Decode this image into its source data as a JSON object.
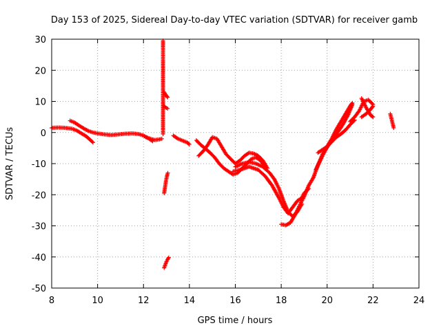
{
  "chart_data": {
    "type": "scatter",
    "title": "Day 153 of 2025, Sidereal Day-to-day VTEC variation (SDTVAR) for receiver gamb",
    "xlabel": "GPS time / hours",
    "ylabel": "SDTVAR / TECUs",
    "xlim": [
      8,
      24
    ],
    "ylim": [
      -50,
      30
    ],
    "xticks": [
      8,
      10,
      12,
      14,
      16,
      18,
      20,
      22,
      24
    ],
    "xtick_labels": [
      "8",
      "10",
      "12",
      "14",
      "16",
      "18",
      "20",
      "22",
      "24"
    ],
    "yticks": [
      -50,
      -40,
      -30,
      -20,
      -10,
      0,
      10,
      20,
      30
    ],
    "ytick_labels": [
      "-50",
      "-40",
      "-30",
      "-20",
      "-10",
      "0",
      "10",
      "20",
      "30"
    ],
    "grid": true,
    "marker": "+",
    "color": "#ff0000",
    "series": [
      {
        "name": "SDTVAR",
        "segments": [
          [
            [
              8.0,
              1.5
            ],
            [
              8.3,
              1.6
            ],
            [
              8.6,
              1.5
            ],
            [
              8.9,
              1.2
            ],
            [
              9.1,
              0.6
            ],
            [
              9.3,
              -0.3
            ],
            [
              9.5,
              -1.2
            ],
            [
              9.7,
              -2.5
            ],
            [
              9.8,
              -3.2
            ]
          ],
          [
            [
              8.8,
              3.8
            ],
            [
              9.0,
              3.2
            ],
            [
              9.2,
              2.2
            ],
            [
              9.4,
              1.3
            ],
            [
              9.6,
              0.5
            ],
            [
              9.8,
              0.0
            ],
            [
              10.0,
              -0.3
            ],
            [
              10.3,
              -0.6
            ],
            [
              10.6,
              -0.8
            ],
            [
              10.9,
              -0.6
            ],
            [
              11.2,
              -0.4
            ],
            [
              11.5,
              -0.3
            ],
            [
              11.8,
              -0.5
            ],
            [
              12.0,
              -1.0
            ],
            [
              12.2,
              -1.8
            ],
            [
              12.4,
              -2.8
            ]
          ],
          [
            [
              12.1,
              -1.5
            ],
            [
              12.3,
              -2.0
            ],
            [
              12.5,
              -2.4
            ],
            [
              12.7,
              -2.2
            ],
            [
              12.8,
              -2.0
            ]
          ],
          [
            [
              12.85,
              29.5
            ],
            [
              12.85,
              20.5
            ],
            [
              12.85,
              15.0
            ],
            [
              12.85,
              1.0
            ],
            [
              12.85,
              -0.5
            ]
          ],
          [
            [
              12.9,
              13.0
            ],
            [
              12.95,
              12.3
            ],
            [
              13.0,
              11.8
            ],
            [
              13.05,
              11.3
            ]
          ],
          [
            [
              12.9,
              8.5
            ],
            [
              12.95,
              8.1
            ],
            [
              13.0,
              7.9
            ],
            [
              13.05,
              7.7
            ]
          ],
          [
            [
              12.9,
              -19.5
            ],
            [
              12.95,
              -17.0
            ],
            [
              12.98,
              -15.5
            ],
            [
              13.02,
              -14.0
            ],
            [
              13.06,
              -13.0
            ]
          ],
          [
            [
              12.9,
              -43.5
            ],
            [
              12.95,
              -42.5
            ],
            [
              13.0,
              -41.5
            ],
            [
              13.05,
              -40.8
            ],
            [
              13.1,
              -40.2
            ]
          ],
          [
            [
              13.3,
              -1.0
            ],
            [
              13.5,
              -2.0
            ],
            [
              13.7,
              -2.6
            ],
            [
              13.9,
              -3.2
            ],
            [
              14.0,
              -3.8
            ]
          ],
          [
            [
              14.3,
              -2.5
            ],
            [
              14.5,
              -4.0
            ],
            [
              14.7,
              -5.2
            ],
            [
              14.9,
              -6.5
            ],
            [
              15.1,
              -8.0
            ],
            [
              15.3,
              -10.0
            ],
            [
              15.5,
              -11.5
            ],
            [
              15.7,
              -12.5
            ],
            [
              15.9,
              -13.5
            ],
            [
              16.1,
              -13.0
            ],
            [
              16.3,
              -11.5
            ],
            [
              16.5,
              -10.0
            ],
            [
              16.7,
              -8.5
            ],
            [
              16.9,
              -8.0
            ],
            [
              17.1,
              -9.0
            ],
            [
              17.3,
              -11.0
            ]
          ],
          [
            [
              14.4,
              -7.5
            ],
            [
              14.6,
              -6.0
            ],
            [
              14.8,
              -4.0
            ],
            [
              15.0,
              -1.5
            ],
            [
              15.2,
              -2.0
            ],
            [
              15.4,
              -4.5
            ],
            [
              15.6,
              -7.0
            ],
            [
              15.8,
              -8.5
            ],
            [
              16.0,
              -10.0
            ],
            [
              16.2,
              -9.0
            ],
            [
              16.4,
              -7.5
            ],
            [
              16.6,
              -6.5
            ],
            [
              16.8,
              -6.8
            ],
            [
              17.0,
              -7.5
            ],
            [
              17.2,
              -9.0
            ],
            [
              17.4,
              -11.5
            ]
          ],
          [
            [
              16.0,
              -11.0
            ],
            [
              16.3,
              -10.0
            ],
            [
              16.6,
              -9.5
            ],
            [
              16.9,
              -10.0
            ],
            [
              17.2,
              -11.0
            ],
            [
              17.5,
              -13.0
            ],
            [
              17.7,
              -15.0
            ],
            [
              17.9,
              -18.0
            ],
            [
              18.1,
              -22.0
            ],
            [
              18.3,
              -25.5
            ],
            [
              18.5,
              -27.0
            ],
            [
              18.7,
              -25.5
            ],
            [
              18.9,
              -23.0
            ]
          ],
          [
            [
              15.9,
              -12.5
            ],
            [
              16.2,
              -12.0
            ],
            [
              16.6,
              -11.0
            ],
            [
              17.0,
              -12.0
            ],
            [
              17.3,
              -14.0
            ],
            [
              17.6,
              -17.0
            ],
            [
              17.9,
              -21.0
            ],
            [
              18.1,
              -24.0
            ],
            [
              18.3,
              -26.0
            ],
            [
              18.5,
              -24.0
            ],
            [
              18.7,
              -22.0
            ],
            [
              18.9,
              -21.0
            ],
            [
              19.0,
              -19.5
            ],
            [
              19.2,
              -18.0
            ]
          ],
          [
            [
              18.0,
              -29.5
            ],
            [
              18.2,
              -29.8
            ],
            [
              18.4,
              -29.0
            ],
            [
              18.6,
              -26.5
            ],
            [
              18.8,
              -23.5
            ],
            [
              19.0,
              -20.5
            ],
            [
              19.2,
              -17.0
            ],
            [
              19.4,
              -14.5
            ],
            [
              19.6,
              -10.5
            ],
            [
              19.8,
              -7.0
            ],
            [
              20.0,
              -4.5
            ],
            [
              20.2,
              -2.0
            ],
            [
              20.4,
              1.0
            ],
            [
              20.6,
              3.5
            ],
            [
              20.8,
              6.0
            ],
            [
              21.0,
              8.5
            ],
            [
              21.1,
              9.5
            ]
          ],
          [
            [
              19.5,
              -12.0
            ],
            [
              19.7,
              -9.0
            ],
            [
              19.9,
              -6.0
            ],
            [
              20.1,
              -3.5
            ],
            [
              20.3,
              -1.5
            ],
            [
              20.5,
              0.5
            ],
            [
              20.7,
              2.8
            ],
            [
              20.9,
              5.5
            ],
            [
              21.1,
              9.0
            ]
          ],
          [
            [
              19.6,
              -6.5
            ],
            [
              19.8,
              -5.5
            ],
            [
              20.0,
              -4.5
            ],
            [
              20.2,
              -3.0
            ],
            [
              20.4,
              -1.5
            ],
            [
              20.6,
              -0.5
            ],
            [
              20.8,
              0.8
            ],
            [
              21.0,
              2.5
            ],
            [
              21.2,
              4.0
            ]
          ],
          [
            [
              21.0,
              3.5
            ],
            [
              21.2,
              5.0
            ],
            [
              21.4,
              7.0
            ],
            [
              21.6,
              10.0
            ],
            [
              21.8,
              10.5
            ],
            [
              22.0,
              9.0
            ]
          ],
          [
            [
              21.5,
              11.0
            ],
            [
              21.7,
              8.0
            ],
            [
              21.9,
              5.5
            ],
            [
              22.0,
              5.0
            ]
          ],
          [
            [
              21.5,
              5.0
            ],
            [
              21.7,
              6.0
            ],
            [
              21.9,
              7.5
            ],
            [
              22.0,
              8.5
            ]
          ],
          [
            [
              22.75,
              6.0
            ],
            [
              22.8,
              4.5
            ],
            [
              22.85,
              3.0
            ],
            [
              22.9,
              1.5
            ]
          ]
        ]
      }
    ]
  }
}
